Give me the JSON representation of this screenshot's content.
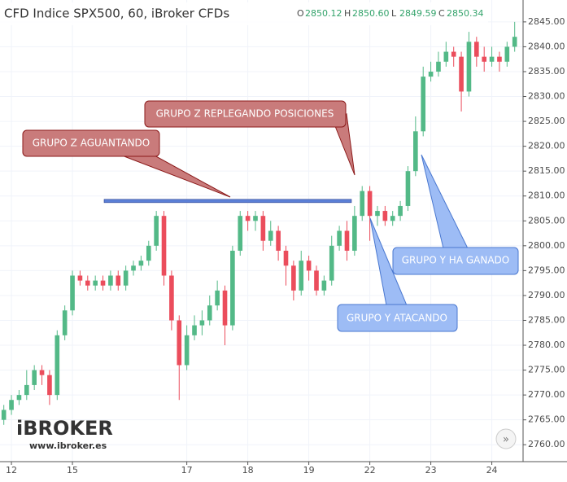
{
  "header": {
    "title": "CFD Indice SPX500, 60, iBroker CFDs",
    "ohlc": [
      {
        "label": "O",
        "value": "2850.12"
      },
      {
        "label": "H",
        "value": "2850.60"
      },
      {
        "label": "L",
        "value": "2849.59"
      },
      {
        "label": "C",
        "value": "2850.34"
      }
    ]
  },
  "logo": {
    "name": "iBROKER",
    "url": "www.ibroker.es"
  },
  "chart_data": {
    "type": "candlestick",
    "categories": [
      null,
      "12",
      null,
      null,
      null,
      null,
      null,
      null,
      null,
      "15",
      null,
      null,
      null,
      null,
      null,
      null,
      null,
      null,
      null,
      null,
      null,
      null,
      null,
      null,
      "17",
      null,
      null,
      null,
      null,
      null,
      null,
      null,
      "18",
      null,
      null,
      null,
      null,
      null,
      null,
      null,
      "19",
      null,
      null,
      null,
      null,
      null,
      null,
      null,
      "22",
      null,
      null,
      null,
      null,
      null,
      null,
      null,
      "23",
      null,
      null,
      null,
      null,
      null,
      null,
      null,
      "24",
      null,
      null,
      null
    ],
    "open": [
      2765,
      2767,
      2769,
      2770,
      2772,
      2775,
      2774,
      2770,
      2782,
      2787,
      2794,
      2793,
      2792,
      2793,
      2792,
      2794,
      2792,
      2795,
      2796,
      2797,
      2800,
      2806,
      2794,
      2785,
      2776,
      2782,
      2784,
      2785,
      2788,
      2791,
      2784,
      2799,
      2806,
      2805,
      2806,
      2801,
      2803,
      2799,
      2796,
      2791,
      2797,
      2795,
      2791,
      2793,
      2800,
      2803,
      2799,
      2806,
      2811,
      2806,
      2807,
      2805,
      2806,
      2808,
      2815,
      2823,
      2834,
      2835,
      2837,
      2839,
      2838,
      2831,
      2841,
      2838,
      2837,
      2838,
      2837,
      2840
    ],
    "high": [
      2768,
      2770,
      2771,
      2775,
      2776,
      2776,
      2775,
      2783,
      2788,
      2795,
      2795,
      2794,
      2794,
      2794,
      2795,
      2795,
      2796,
      2797,
      2798,
      2801,
      2807,
      2807,
      2795,
      2786,
      2784,
      2786,
      2787,
      2790,
      2793,
      2792,
      2800,
      2807,
      2807,
      2807,
      2807,
      2805,
      2804,
      2800,
      2797,
      2799,
      2798,
      2796,
      2794,
      2802,
      2804,
      2805,
      2808,
      2812,
      2812,
      2808,
      2808,
      2807,
      2809,
      2816,
      2826,
      2836,
      2837,
      2839,
      2841,
      2840,
      2839,
      2843,
      2842,
      2840,
      2840,
      2839,
      2841,
      2845
    ],
    "low": [
      2764,
      2766,
      2768,
      2769,
      2771,
      2772,
      2768,
      2769,
      2781,
      2786,
      2792,
      2791,
      2791,
      2791,
      2791,
      2791,
      2791,
      2794,
      2795,
      2796,
      2799,
      2792,
      2783,
      2769,
      2775,
      2781,
      2782,
      2784,
      2787,
      2780,
      2783,
      2798,
      2803,
      2803,
      2799,
      2800,
      2797,
      2792,
      2789,
      2790,
      2793,
      2790,
      2790,
      2792,
      2799,
      2797,
      2798,
      2805,
      2801,
      2804,
      2804,
      2804,
      2805,
      2807,
      2814,
      2822,
      2833,
      2834,
      2836,
      2836,
      2827,
      2830,
      2836,
      2835,
      2836,
      2835,
      2836,
      2839
    ],
    "close": [
      2767,
      2769,
      2770,
      2772,
      2775,
      2774,
      2770,
      2782,
      2787,
      2794,
      2793,
      2792,
      2793,
      2792,
      2794,
      2792,
      2795,
      2796,
      2797,
      2800,
      2806,
      2794,
      2785,
      2776,
      2782,
      2784,
      2785,
      2788,
      2791,
      2784,
      2799,
      2806,
      2805,
      2806,
      2801,
      2803,
      2799,
      2796,
      2791,
      2797,
      2795,
      2791,
      2793,
      2800,
      2803,
      2799,
      2806,
      2811,
      2806,
      2807,
      2805,
      2806,
      2808,
      2815,
      2823,
      2834,
      2835,
      2837,
      2839,
      2838,
      2831,
      2841,
      2838,
      2837,
      2838,
      2837,
      2840,
      2842
    ],
    "up_color": "#53b987",
    "down_color": "#eb4d5c",
    "ylim": [
      2756.6,
      2849.4
    ],
    "yticks": [
      {
        "value": 2760,
        "label": "2760.00"
      },
      {
        "value": 2765,
        "label": "2765.00"
      },
      {
        "value": 2770,
        "label": "2770.00"
      },
      {
        "value": 2775,
        "label": "2775.00"
      },
      {
        "value": 2780,
        "label": "2780.00"
      },
      {
        "value": 2785,
        "label": "2785.00"
      },
      {
        "value": 2790,
        "label": "2790.00"
      },
      {
        "value": 2795,
        "label": "2795.00"
      },
      {
        "value": 2800,
        "label": "2800.00"
      },
      {
        "value": 2805,
        "label": "2805.00"
      },
      {
        "value": 2810,
        "label": "2810.00"
      },
      {
        "value": 2815,
        "label": "2815.00"
      },
      {
        "value": 2820,
        "label": "2820.00"
      },
      {
        "value": 2825,
        "label": "2825.00"
      },
      {
        "value": 2830,
        "label": "2830.00"
      },
      {
        "value": 2835,
        "label": "2835.00"
      },
      {
        "value": 2840,
        "label": "2840.00"
      },
      {
        "value": 2845,
        "label": "2845.00"
      }
    ],
    "reference_line": {
      "value": 2809,
      "color": "#5b7fd6"
    },
    "annotations": [
      "GRUPO Z AGUANTANDO",
      "GRUPO Z REPLEGANDO POSICIONES",
      "GRUPO Y HA GANADO",
      "GRUPO Y ATACANDO"
    ]
  }
}
